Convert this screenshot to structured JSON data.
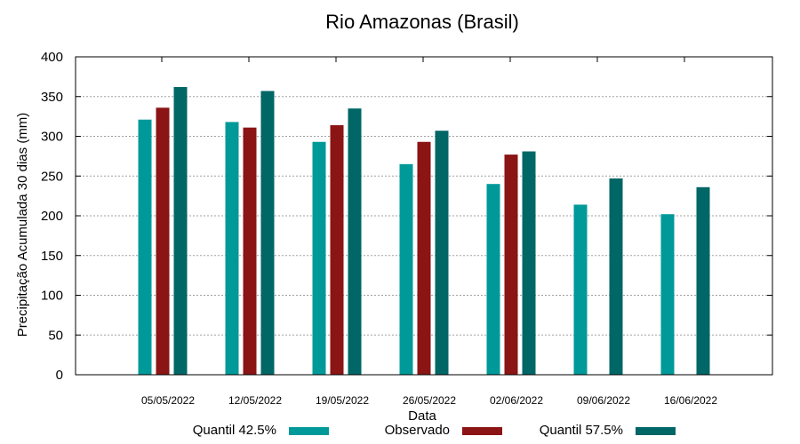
{
  "chart_data": {
    "type": "bar",
    "title": "Rio Amazonas (Brasil)",
    "xlabel": "Data",
    "ylabel": "Precipitação Acumulada 30 dias (mm)",
    "ylim": [
      0,
      400
    ],
    "yticks": [
      0,
      50,
      100,
      150,
      200,
      250,
      300,
      350,
      400
    ],
    "grid": true,
    "legend_position": "bottom",
    "categories": [
      "05/05/2022",
      "12/05/2022",
      "19/05/2022",
      "26/05/2022",
      "02/06/2022",
      "09/06/2022",
      "16/06/2022"
    ],
    "series": [
      {
        "name": "Quantil 42.5%",
        "color": "#009999",
        "values": [
          321,
          318,
          293,
          265,
          240,
          214,
          202
        ]
      },
      {
        "name": "Observado",
        "color": "#8b1414",
        "values": [
          336,
          311,
          314,
          293,
          277,
          null,
          null
        ]
      },
      {
        "name": "Quantil 57.5%",
        "color": "#006666",
        "values": [
          362,
          357,
          335,
          307,
          281,
          247,
          236
        ]
      }
    ]
  }
}
